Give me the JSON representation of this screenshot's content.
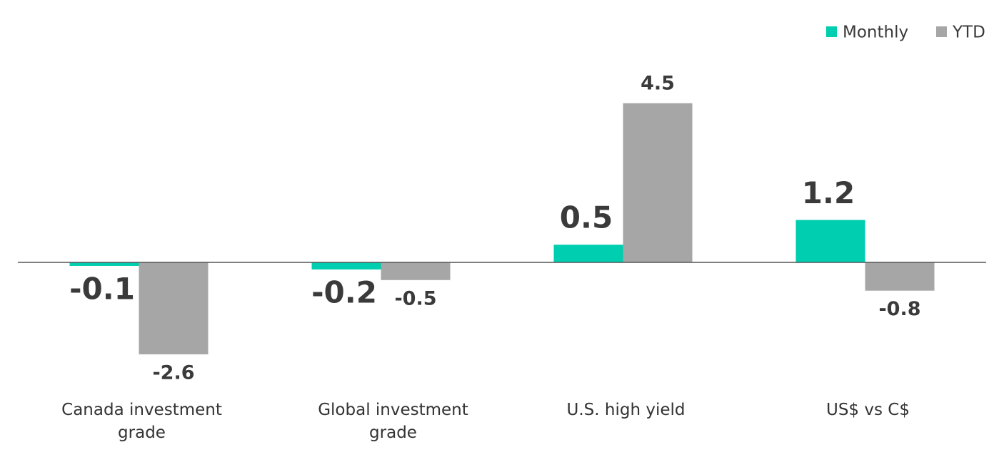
{
  "chart_data": {
    "type": "bar",
    "categories": [
      "Canada investment grade",
      "Global investment grade",
      "U.S. high yield",
      "US$ vs C$"
    ],
    "series": [
      {
        "name": "Monthly",
        "color": "#00ceb0",
        "values": [
          -0.1,
          -0.2,
          0.5,
          1.2
        ]
      },
      {
        "name": "YTD",
        "color": "#a6a6a6",
        "values": [
          -2.6,
          -0.5,
          4.5,
          -0.8
        ]
      }
    ],
    "legend": "top-right"
  }
}
